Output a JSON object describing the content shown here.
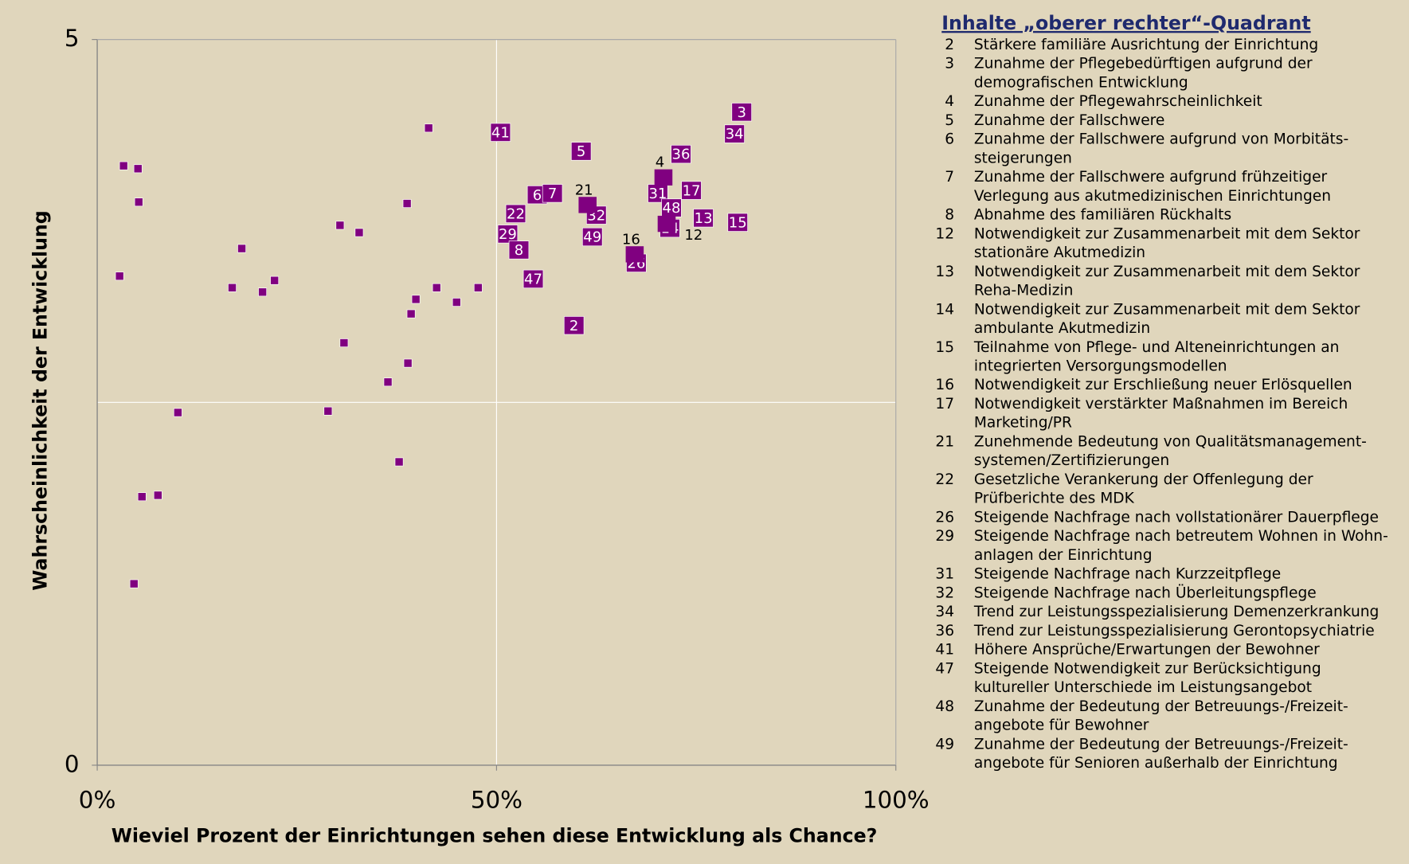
{
  "chart_data": {
    "type": "scatter",
    "x_label": "Wieviel Prozent der Einrichtungen sehen diese Entwicklung als Chance?",
    "y_label": "Wahrscheinlichkeit der Entwicklung",
    "xlim": [
      0,
      100
    ],
    "ylim": [
      0,
      5
    ],
    "xticks": [
      {
        "value": 0,
        "label": "0%"
      },
      {
        "value": 50,
        "label": "50%"
      },
      {
        "value": 100,
        "label": "100%"
      }
    ],
    "yticks": [
      0,
      5
    ],
    "quadrant": {
      "x": 50,
      "y": 2.5
    },
    "series": [
      {
        "color": "#800080",
        "label_style": "box",
        "labels": [
          41,
          5,
          3,
          34,
          36,
          31,
          17,
          6,
          7,
          22,
          32,
          48,
          13,
          15,
          14,
          29,
          49,
          8,
          26,
          47,
          2
        ],
        "x": [
          50.5,
          60.6,
          80.7,
          79.8,
          73.1,
          70.2,
          74.4,
          55.1,
          57.0,
          52.4,
          62.5,
          71.9,
          75.9,
          80.2,
          71.7,
          51.4,
          62.0,
          52.8,
          67.5,
          54.6,
          59.7
        ],
        "values": [
          4.36,
          4.23,
          4.5,
          4.35,
          4.21,
          3.94,
          3.96,
          3.93,
          3.94,
          3.8,
          3.79,
          3.84,
          3.77,
          3.74,
          3.7,
          3.66,
          3.64,
          3.55,
          3.46,
          3.35,
          3.03
        ]
      },
      {
        "color": "#800080",
        "label_style": "plain",
        "labels": [
          4,
          21,
          16,
          12
        ],
        "x": [
          70.9,
          61.4,
          67.3,
          71.3
        ],
        "values": [
          4.05,
          3.86,
          3.52,
          3.73
        ]
      },
      {
        "color": "#800080",
        "label_style": "none",
        "x": [
          3.3,
          5.1,
          5.2,
          2.8,
          18.1,
          16.9,
          20.7,
          22.2,
          30.4,
          32.8,
          41.5,
          38.8,
          39.9,
          39.3,
          42.5,
          45.0,
          47.7,
          30.9,
          38.9,
          36.4,
          28.9,
          10.1,
          37.8,
          5.6,
          7.6,
          4.6
        ],
        "values": [
          4.13,
          4.11,
          3.88,
          3.37,
          3.56,
          3.29,
          3.26,
          3.34,
          3.72,
          3.67,
          4.39,
          3.87,
          3.21,
          3.11,
          3.29,
          3.19,
          3.29,
          2.91,
          2.77,
          2.64,
          2.44,
          2.43,
          2.09,
          1.85,
          1.86,
          1.25
        ]
      }
    ]
  },
  "list": {
    "title": "Inhalte „oberer rechter“-Quadrant",
    "items": [
      {
        "id": 2,
        "lines": [
          "Stärkere familiäre Ausrichtung der Einrichtung"
        ]
      },
      {
        "id": 3,
        "lines": [
          "Zunahme der Pflegebedürftigen aufgrund der",
          "demografischen Entwicklung"
        ]
      },
      {
        "id": 4,
        "lines": [
          "Zunahme der Pflegewahrscheinlichkeit"
        ]
      },
      {
        "id": 5,
        "lines": [
          "Zunahme der Fallschwere"
        ]
      },
      {
        "id": 6,
        "lines": [
          "Zunahme der Fallschwere aufgrund von Morbitäts-",
          "steigerungen"
        ]
      },
      {
        "id": 7,
        "lines": [
          "Zunahme der Fallschwere aufgrund frühzeitiger",
          "Verlegung aus akutmedizinischen Einrichtungen"
        ]
      },
      {
        "id": 8,
        "lines": [
          "Abnahme des familiären Rückhalts"
        ]
      },
      {
        "id": 12,
        "lines": [
          "Notwendigkeit zur Zusammenarbeit mit dem Sektor",
          "stationäre Akutmedizin"
        ]
      },
      {
        "id": 13,
        "lines": [
          "Notwendigkeit zur Zusammenarbeit mit dem Sektor",
          "Reha-Medizin"
        ]
      },
      {
        "id": 14,
        "lines": [
          "Notwendigkeit zur Zusammenarbeit mit dem Sektor",
          "ambulante Akutmedizin"
        ]
      },
      {
        "id": 15,
        "lines": [
          "Teilnahme von Pflege- und Alteneinrichtungen an",
          "integrierten Versorgungsmodellen"
        ]
      },
      {
        "id": 16,
        "lines": [
          "Notwendigkeit zur Erschließung neuer Erlösquellen"
        ]
      },
      {
        "id": 17,
        "lines": [
          "Notwendigkeit verstärkter Maßnahmen im Bereich",
          "Marketing/PR"
        ]
      },
      {
        "id": 21,
        "lines": [
          "Zunehmende Bedeutung von Qualitätsmanagement-",
          "systemen/Zertifizierungen"
        ]
      },
      {
        "id": 22,
        "lines": [
          "Gesetzliche Verankerung der Offenlegung der",
          "Prüfberichte des MDK"
        ]
      },
      {
        "id": 26,
        "lines": [
          "Steigende Nachfrage nach vollstationärer Dauerpflege"
        ]
      },
      {
        "id": 29,
        "lines": [
          "Steigende Nachfrage nach betreutem Wohnen in Wohn-",
          "anlagen der Einrichtung"
        ]
      },
      {
        "id": 31,
        "lines": [
          "Steigende Nachfrage nach Kurzzeitpflege"
        ]
      },
      {
        "id": 32,
        "lines": [
          "Steigende Nachfrage nach Überleitungspflege"
        ]
      },
      {
        "id": 34,
        "lines": [
          "Trend zur Leistungsspezialisierung Demenzerkrankung"
        ]
      },
      {
        "id": 36,
        "lines": [
          "Trend zur Leistungsspezialisierung Gerontopsychiatrie"
        ]
      },
      {
        "id": 41,
        "lines": [
          "Höhere Ansprüche/Erwartungen der Bewohner"
        ]
      },
      {
        "id": 47,
        "lines": [
          "Steigende Notwendigkeit zur Berücksichtigung",
          "kultureller Unterschiede im Leistungsangebot"
        ]
      },
      {
        "id": 48,
        "lines": [
          "Zunahme der Bedeutung der Betreuungs-/Freizeit-",
          "angebote für Bewohner"
        ]
      },
      {
        "id": 49,
        "lines": [
          "Zunahme der Bedeutung der Betreuungs-/Freizeit-",
          "angebote für Senioren außerhalb der Einrichtung"
        ]
      }
    ]
  }
}
